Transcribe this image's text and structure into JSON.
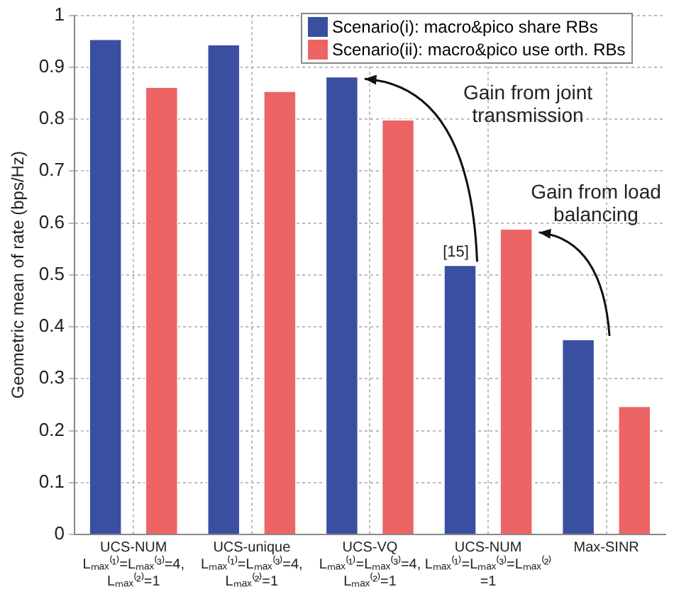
{
  "chart_data": {
    "type": "bar",
    "ylabel": "Geometric mean of rate (bps/Hz)",
    "categories": [
      "UCS-NUM\nLₘₐₓ⁽¹⁾=Lₘₐₓ⁽³⁾=4,\nLₘₐₓ⁽²⁾=1",
      "UCS-unique\nLₘₐₓ⁽¹⁾=Lₘₐₓ⁽³⁾=4,\nLₘₐₓ⁽²⁾=1",
      "UCS-VQ\nLₘₐₓ⁽¹⁾=Lₘₐₓ⁽³⁾=4,\nLₘₐₓ⁽²⁾=1",
      "UCS-NUM\nLₘₐₓ⁽¹⁾=Lₘₐₓ⁽³⁾=Lₘₐₓ⁽²⁾\n=1",
      "Max-SINR"
    ],
    "series": [
      {
        "name": "Scenario(i): macro&pico share RBs",
        "color": "#3a4fa0",
        "values": [
          0.955,
          0.945,
          0.883,
          0.52,
          0.377
        ]
      },
      {
        "name": "Scenario(ii): macro&pico use orth. RBs",
        "color": "#ec6464",
        "values": [
          0.863,
          0.855,
          0.8,
          0.59,
          0.248
        ]
      }
    ],
    "ylim": [
      0,
      1
    ],
    "yticks": [
      0,
      0.1,
      0.2,
      0.3,
      0.4,
      0.5,
      0.6,
      0.7,
      0.8,
      0.9,
      1
    ],
    "grid": true,
    "legend": "top right",
    "annotations": [
      "[15]",
      "Gain from joint\ntransmission",
      "Gain from load\nbalancing"
    ]
  }
}
